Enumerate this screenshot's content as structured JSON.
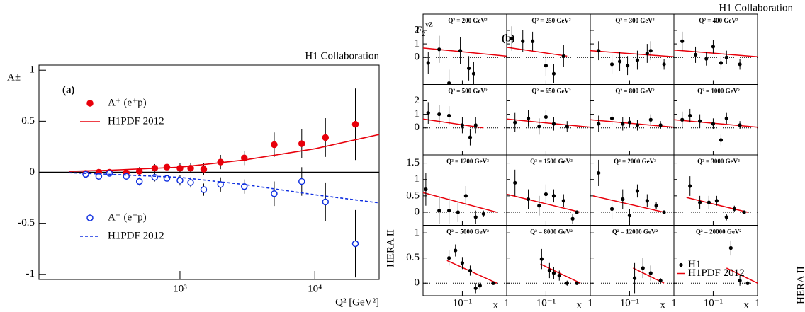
{
  "chart_data": [
    {
      "type": "scatter",
      "title": "H1 Collaboration",
      "label": "(a)",
      "ylabel": "A±",
      "xlabel": "Q² [GeV²]",
      "annotation": "HERA II",
      "xscale": "log",
      "xlim": [
        90,
        30000
      ],
      "xticks": [
        {
          "value": 1000,
          "label": "10³"
        },
        {
          "value": 10000,
          "label": "10⁴"
        }
      ],
      "ylim": [
        -1.05,
        1.05
      ],
      "yticks": [
        -1,
        -0.5,
        0,
        0.5,
        1
      ],
      "series": [
        {
          "name": "A⁺  (e⁺p)",
          "color": "#e8000b",
          "marker": "filled",
          "x": [
            200,
            250,
            300,
            400,
            500,
            650,
            800,
            1000,
            1200,
            1500,
            2000,
            3000,
            5000,
            8000,
            12000,
            20000
          ],
          "values": [
            -0.01,
            0,
            0,
            -0.005,
            0.01,
            0.04,
            0.05,
            0.04,
            0.04,
            0.03,
            0.1,
            0.14,
            0.27,
            0.28,
            0.34,
            0.47
          ],
          "errors": [
            0.03,
            0.03,
            0.03,
            0.03,
            0.04,
            0.04,
            0.04,
            0.05,
            0.05,
            0.06,
            0.07,
            0.07,
            0.12,
            0.14,
            0.19,
            0.35
          ]
        },
        {
          "name": "H1PDF 2012",
          "color": "#e8000b",
          "line": "solid",
          "x": [
            150,
            300,
            1000,
            3000,
            10000,
            30000
          ],
          "values": [
            0.01,
            0.02,
            0.05,
            0.12,
            0.23,
            0.37
          ]
        },
        {
          "name": "A⁻  (e⁻p)",
          "color": "#1030e0",
          "marker": "open",
          "x": [
            200,
            250,
            300,
            400,
            500,
            650,
            800,
            1000,
            1200,
            1500,
            2000,
            3000,
            5000,
            8000,
            12000,
            20000
          ],
          "values": [
            -0.02,
            -0.04,
            -0.01,
            -0.04,
            -0.09,
            -0.05,
            -0.06,
            -0.08,
            -0.1,
            -0.17,
            -0.12,
            -0.14,
            -0.21,
            -0.09,
            -0.29,
            -0.7
          ],
          "errors": [
            0.03,
            0.03,
            0.03,
            0.03,
            0.04,
            0.04,
            0.04,
            0.05,
            0.05,
            0.06,
            0.07,
            0.07,
            0.12,
            0.14,
            0.19,
            0.33
          ]
        },
        {
          "name": "H1PDF 2012",
          "color": "#1030e0",
          "line": "dashed",
          "x": [
            150,
            300,
            1000,
            3000,
            10000,
            30000
          ],
          "values": [
            -0.005,
            -0.02,
            -0.05,
            -0.12,
            -0.22,
            -0.3
          ]
        }
      ]
    },
    {
      "type": "panel-grid",
      "title": "H1 Collaboration",
      "label": "(b)",
      "ylabel": "F",
      "ylabel_sub": "2",
      "ylabel_sup": "γZ",
      "xlabel": "x",
      "annotation": "HERA II",
      "legend": [
        "H1",
        "H1PDF 2012"
      ],
      "point_color": "#000000",
      "curve_color": "#e8000b",
      "xscale": "log",
      "xlim": [
        0.013,
        1
      ],
      "xticks": [
        {
          "value": 0.1,
          "label": "10⁻¹"
        },
        1
      ],
      "rows": [
        {
          "ylim": [
            -2,
            3.2
          ],
          "yticks": [
            0,
            1,
            2
          ]
        },
        {
          "ylim": [
            -2,
            3.2
          ],
          "yticks": [
            0,
            1,
            2
          ]
        },
        {
          "ylim": [
            -0.4,
            1.75
          ],
          "yticks": [
            0,
            0.5,
            1,
            1.5
          ]
        },
        {
          "ylim": [
            -0.25,
            1.15
          ],
          "yticks": [
            0,
            0.5,
            1
          ]
        }
      ],
      "panels": [
        {
          "title": "Q² = 200 GeV²",
          "x": [
            0.017,
            0.03,
            0.05,
            0.09,
            0.14,
            0.18
          ],
          "values": [
            -0.4,
            0.6,
            -1.9,
            0.5,
            -0.8,
            -1.2
          ],
          "errors": [
            0.8,
            1,
            1,
            1,
            0.9,
            0.9
          ],
          "curve_x": [
            0.013,
            1
          ],
          "curve": [
            0.7,
            0.1
          ]
        },
        {
          "title": "Q² = 250 GeV²",
          "x": [
            0.017,
            0.03,
            0.05,
            0.1,
            0.15,
            0.25
          ],
          "values": [
            1.4,
            1.2,
            1.2,
            -0.6,
            -1.2,
            0.1
          ],
          "errors": [
            0.9,
            0.8,
            0.7,
            0.8,
            0.7,
            0.8
          ],
          "curve_x": [
            0.013,
            0.3
          ],
          "curve": [
            0.75,
            0.1
          ]
        },
        {
          "title": "Q² = 300 GeV²",
          "x": [
            0.02,
            0.04,
            0.06,
            0.09,
            0.15,
            0.25,
            0.3,
            0.6
          ],
          "values": [
            0.5,
            -0.5,
            -0.3,
            -0.6,
            -0.2,
            0.3,
            0.5,
            -0.5
          ],
          "errors": [
            0.7,
            0.7,
            0.7,
            0.7,
            0.7,
            0.7,
            0.7,
            0.4
          ],
          "curve_x": [
            0.013,
            1
          ],
          "curve": [
            0.5,
            0.05
          ]
        },
        {
          "title": "Q² = 400 GeV²",
          "x": [
            0.02,
            0.04,
            0.07,
            0.1,
            0.15,
            0.2,
            0.4
          ],
          "values": [
            1.2,
            0.2,
            -0.1,
            0.8,
            -0.4,
            0,
            -0.5
          ],
          "errors": [
            0.7,
            0.6,
            0.5,
            0.5,
            0.5,
            0.5,
            0.4
          ],
          "curve_x": [
            0.013,
            1
          ],
          "curve": [
            0.55,
            0.05
          ]
        },
        {
          "title": "Q² = 500 GeV²",
          "x": [
            0.017,
            0.03,
            0.05,
            0.1,
            0.15,
            0.2
          ],
          "values": [
            1.1,
            1,
            0.9,
            0.2,
            -0.7,
            0.2
          ],
          "errors": [
            0.8,
            0.7,
            0.7,
            0.6,
            0.6,
            0.6
          ],
          "curve_x": [
            0.013,
            0.3
          ],
          "curve": [
            0.65,
            0
          ]
        },
        {
          "title": "Q² = 650 GeV²",
          "x": [
            0.02,
            0.04,
            0.07,
            0.1,
            0.15,
            0.3
          ],
          "values": [
            0.4,
            0.7,
            0.1,
            0.8,
            0.3,
            0.1
          ],
          "errors": [
            0.7,
            0.6,
            0.6,
            0.5,
            0.5,
            0.4
          ],
          "curve_x": [
            0.013,
            1
          ],
          "curve": [
            0.65,
            0.05
          ]
        },
        {
          "title": "Q² = 800 GeV²",
          "x": [
            0.02,
            0.04,
            0.07,
            0.1,
            0.15,
            0.3,
            0.5
          ],
          "values": [
            0.3,
            0.7,
            0.3,
            0.4,
            0.2,
            0.6,
            0.2
          ],
          "errors": [
            0.6,
            0.5,
            0.5,
            0.4,
            0.4,
            0.4,
            0.3
          ],
          "curve_x": [
            0.013,
            1
          ],
          "curve": [
            0.6,
            0.05
          ]
        },
        {
          "title": "Q² = 1000 GeV²",
          "x": [
            0.02,
            0.03,
            0.05,
            0.1,
            0.15,
            0.2,
            0.4
          ],
          "values": [
            0.6,
            0.9,
            0.5,
            0.3,
            -0.9,
            0.7,
            0.2
          ],
          "errors": [
            0.6,
            0.5,
            0.5,
            0.4,
            0.4,
            0.4,
            0.3
          ],
          "curve_x": [
            0.013,
            1
          ],
          "curve": [
            0.6,
            0.05
          ]
        },
        {
          "title": "Q² = 1200 GeV²",
          "x": [
            0.015,
            0.03,
            0.05,
            0.08,
            0.12,
            0.2,
            0.3
          ],
          "values": [
            0.7,
            0.05,
            0.05,
            0,
            0.5,
            -0.15,
            -0.05
          ],
          "errors": [
            0.5,
            0.4,
            0.4,
            0.3,
            0.3,
            0.2,
            0.1
          ],
          "curve_x": [
            0.013,
            0.6
          ],
          "curve": [
            0.6,
            0
          ]
        },
        {
          "title": "Q² = 1500 GeV²",
          "x": [
            0.02,
            0.04,
            0.07,
            0.1,
            0.15,
            0.25,
            0.4,
            0.5
          ],
          "values": [
            0.9,
            0.4,
            0.2,
            0.55,
            0.5,
            0.35,
            -0.2,
            0
          ],
          "errors": [
            0.4,
            0.3,
            0.3,
            0.3,
            0.2,
            0.2,
            0.15,
            0.05
          ],
          "curve_x": [
            0.013,
            0.6
          ],
          "curve": [
            0.55,
            0
          ]
        },
        {
          "title": "Q² = 2000 GeV²",
          "x": [
            0.02,
            0.04,
            0.07,
            0.1,
            0.15,
            0.25,
            0.4,
            0.6
          ],
          "values": [
            1.2,
            0.1,
            0.4,
            -0.1,
            0.65,
            0.35,
            0.2,
            0
          ],
          "errors": [
            0.4,
            0.3,
            0.3,
            0.2,
            0.2,
            0.2,
            0.1,
            0.05
          ],
          "curve_x": [
            0.015,
            0.6
          ],
          "curve": [
            0.5,
            0
          ]
        },
        {
          "title": "Q² = 3000 GeV²",
          "x": [
            0.03,
            0.05,
            0.08,
            0.12,
            0.2,
            0.3,
            0.5
          ],
          "values": [
            0.8,
            0.3,
            0.3,
            0.35,
            -0.15,
            0.1,
            0
          ],
          "errors": [
            0.3,
            0.2,
            0.2,
            0.15,
            0.1,
            0.1,
            0.05
          ],
          "curve_x": [
            0.025,
            0.6
          ],
          "curve": [
            0.45,
            0
          ]
        },
        {
          "title": "Q² = 5000 GeV²",
          "x": [
            0.05,
            0.07,
            0.1,
            0.15,
            0.2,
            0.25,
            0.5
          ],
          "values": [
            0.5,
            0.65,
            0.4,
            0.25,
            -0.1,
            -0.05,
            0
          ],
          "errors": [
            0.15,
            0.12,
            0.12,
            0.1,
            0.1,
            0.08,
            0.02
          ],
          "curve_x": [
            0.045,
            0.6
          ],
          "curve": [
            0.45,
            0
          ]
        },
        {
          "title": "Q² = 8000 GeV²",
          "x": [
            0.08,
            0.12,
            0.15,
            0.2,
            0.3,
            0.5
          ],
          "values": [
            0.48,
            0.25,
            0.2,
            0.15,
            0,
            0
          ],
          "errors": [
            0.2,
            0.15,
            0.12,
            0.1,
            0.05,
            0.02
          ],
          "curve_x": [
            0.075,
            0.6
          ],
          "curve": [
            0.38,
            0
          ]
        },
        {
          "title": "Q² = 12000 GeV²",
          "x": [
            0.13,
            0.2,
            0.3,
            0.5
          ],
          "values": [
            0.1,
            0.3,
            0.2,
            0.05
          ],
          "errors": [
            0.3,
            0.2,
            0.15,
            0.05
          ],
          "curve_x": [
            0.12,
            0.6
          ],
          "curve": [
            0.3,
            0
          ]
        },
        {
          "title": "Q² = 20000 GeV²",
          "x": [
            0.25,
            0.4,
            0.6
          ],
          "values": [
            0.7,
            0.05,
            0
          ],
          "errors": [
            0.15,
            0.1,
            0.03
          ],
          "curve_x": [
            0.2,
            1
          ],
          "curve": [
            0.3,
            0
          ]
        }
      ]
    }
  ]
}
